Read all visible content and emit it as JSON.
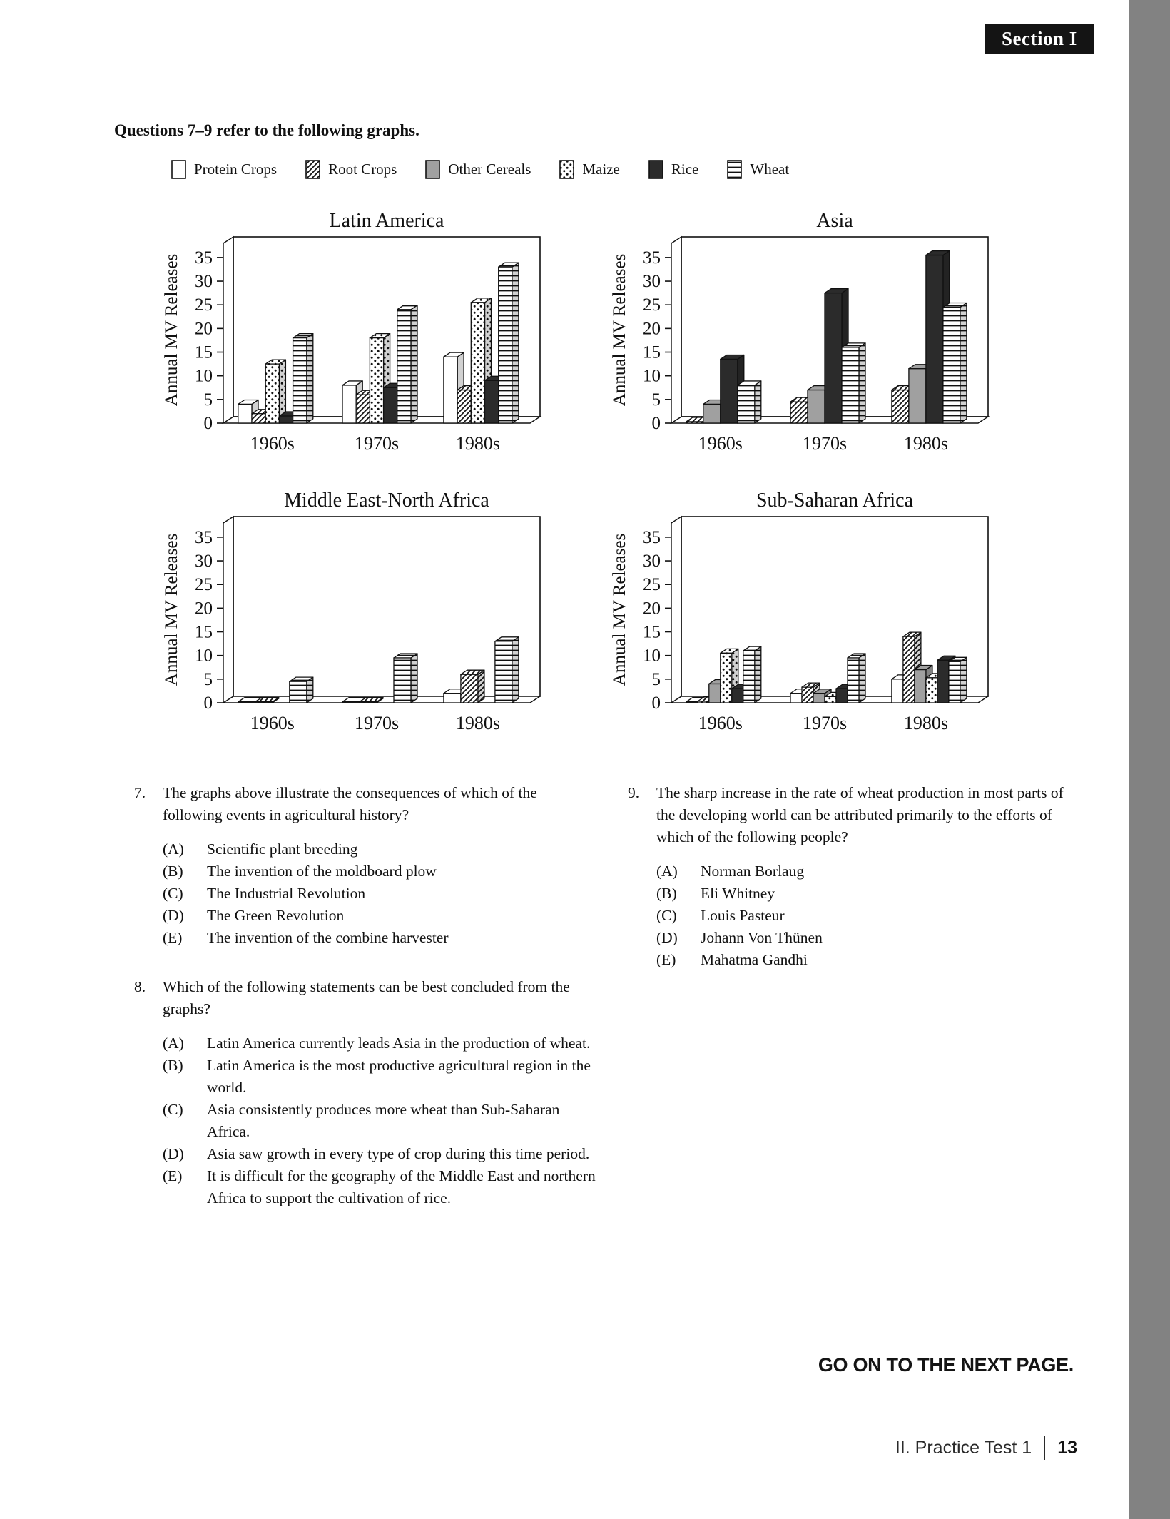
{
  "page": {
    "section_badge": "Section I",
    "intro": "Questions 7–9 refer to the following graphs.",
    "go_on": "GO ON TO THE NEXT PAGE.",
    "footer_label": "II.  Practice Test 1",
    "footer_page": "13"
  },
  "colors": {
    "other_cereals_gray": "#a0a0a0",
    "rice_black": "#2b2b2b",
    "side_strip_gray": "#828282",
    "badge_black": "#141414"
  },
  "legend": {
    "items": [
      {
        "label": "Protein Crops",
        "pattern": "protein"
      },
      {
        "label": "Root Crops",
        "pattern": "root"
      },
      {
        "label": "Other Cereals",
        "pattern": "other"
      },
      {
        "label": "Maize",
        "pattern": "maize"
      },
      {
        "label": "Rice",
        "pattern": "rice"
      },
      {
        "label": "Wheat",
        "pattern": "wheat"
      }
    ]
  },
  "axis": {
    "yticks": [
      0,
      5,
      10,
      15,
      20,
      25,
      30,
      35
    ]
  },
  "chart_data": [
    {
      "type": "bar",
      "title": "Latin America",
      "ylabel": "Annual MV Releases",
      "xlabel": "",
      "ylim": [
        0,
        35
      ],
      "grid": false,
      "legend_position": "shared-top",
      "categories": [
        "1960s",
        "1970s",
        "1980s"
      ],
      "series": [
        {
          "name": "Protein Crops",
          "pattern": "protein",
          "values": [
            4,
            8,
            14
          ]
        },
        {
          "name": "Root Crops",
          "pattern": "root",
          "values": [
            2,
            6,
            7
          ]
        },
        {
          "name": "Maize",
          "pattern": "maize",
          "values": [
            12.5,
            18,
            25.5
          ]
        },
        {
          "name": "Rice",
          "pattern": "rice",
          "values": [
            1.5,
            7.5,
            9
          ]
        },
        {
          "name": "Wheat",
          "pattern": "wheat",
          "values": [
            18,
            24,
            33
          ]
        }
      ]
    },
    {
      "type": "bar",
      "title": "Asia",
      "ylabel": "Annual MV Releases",
      "xlabel": "",
      "ylim": [
        0,
        35
      ],
      "grid": false,
      "legend_position": "shared-top",
      "categories": [
        "1960s",
        "1970s",
        "1980s"
      ],
      "series": [
        {
          "name": "Root Crops",
          "pattern": "root",
          "values": [
            0.3,
            4.5,
            7
          ]
        },
        {
          "name": "Other Cereals",
          "pattern": "other",
          "values": [
            4,
            7,
            11.5
          ]
        },
        {
          "name": "Rice",
          "pattern": "rice",
          "values": [
            13.5,
            27.5,
            35.5
          ]
        },
        {
          "name": "Wheat",
          "pattern": "wheat",
          "values": [
            8,
            16,
            24.5
          ]
        }
      ]
    },
    {
      "type": "bar",
      "title": "Middle East-North Africa",
      "ylabel": "Annual MV Releases",
      "xlabel": "",
      "ylim": [
        0,
        35
      ],
      "grid": false,
      "legend_position": "shared-top",
      "categories": [
        "1960s",
        "1970s",
        "1980s"
      ],
      "series": [
        {
          "name": "Protein Crops",
          "pattern": "protein",
          "values": [
            0.2,
            0.2,
            2
          ]
        },
        {
          "name": "Root Crops",
          "pattern": "root",
          "values": [
            0.2,
            0.2,
            6
          ]
        },
        {
          "name": "Other Cereals",
          "pattern": "other",
          "values": [
            0,
            0,
            0
          ]
        },
        {
          "name": "Wheat",
          "pattern": "wheat",
          "values": [
            4.5,
            9.5,
            13
          ]
        }
      ]
    },
    {
      "type": "bar",
      "title": "Sub-Saharan Africa",
      "ylabel": "Annual MV Releases",
      "xlabel": "",
      "ylim": [
        0,
        35
      ],
      "grid": false,
      "legend_position": "shared-top",
      "categories": [
        "1960s",
        "1970s",
        "1980s"
      ],
      "series": [
        {
          "name": "Protein Crops",
          "pattern": "protein",
          "values": [
            0.2,
            2,
            5
          ]
        },
        {
          "name": "Root Crops",
          "pattern": "root",
          "values": [
            0.3,
            3.3,
            14
          ]
        },
        {
          "name": "Other Cereals",
          "pattern": "other",
          "values": [
            4,
            2,
            7
          ]
        },
        {
          "name": "Maize",
          "pattern": "maize",
          "values": [
            10.5,
            1.3,
            5.3
          ]
        },
        {
          "name": "Rice",
          "pattern": "rice",
          "values": [
            3,
            3,
            9
          ]
        },
        {
          "name": "Wheat",
          "pattern": "wheat",
          "values": [
            11,
            9.5,
            8.7
          ]
        }
      ]
    }
  ],
  "questions": [
    {
      "column": "left",
      "number": "7.",
      "stem": "The graphs above illustrate the consequences of which of the following events in agricultural history?",
      "options": [
        {
          "letter": "(A)",
          "text": "Scientific plant breeding"
        },
        {
          "letter": "(B)",
          "text": "The invention of the moldboard plow"
        },
        {
          "letter": "(C)",
          "text": "The Industrial Revolution"
        },
        {
          "letter": "(D)",
          "text": "The Green Revolution"
        },
        {
          "letter": "(E)",
          "text": "The invention of the combine harvester"
        }
      ]
    },
    {
      "column": "left",
      "number": "8.",
      "stem": "Which of the following statements can be best concluded from the graphs?",
      "options": [
        {
          "letter": "(A)",
          "text": "Latin America currently leads Asia in the production of wheat."
        },
        {
          "letter": "(B)",
          "text": "Latin America is the most productive agricultural region in the world."
        },
        {
          "letter": "(C)",
          "text": "Asia consistently produces more wheat than Sub-Saharan Africa."
        },
        {
          "letter": "(D)",
          "text": "Asia saw growth in every type of crop during this time period."
        },
        {
          "letter": "(E)",
          "text": "It is difficult for the geography of the Middle East and northern Africa to support the cultivation of rice."
        }
      ]
    },
    {
      "column": "right",
      "number": "9.",
      "stem": "The sharp increase in the rate of wheat production in most parts of the developing world can be attributed primarily to the efforts of which of the following people?",
      "options": [
        {
          "letter": "(A)",
          "text": "Norman Borlaug"
        },
        {
          "letter": "(B)",
          "text": "Eli Whitney"
        },
        {
          "letter": "(C)",
          "text": "Louis Pasteur"
        },
        {
          "letter": "(D)",
          "text": "Johann Von Thünen"
        },
        {
          "letter": "(E)",
          "text": "Mahatma Gandhi"
        }
      ]
    }
  ]
}
